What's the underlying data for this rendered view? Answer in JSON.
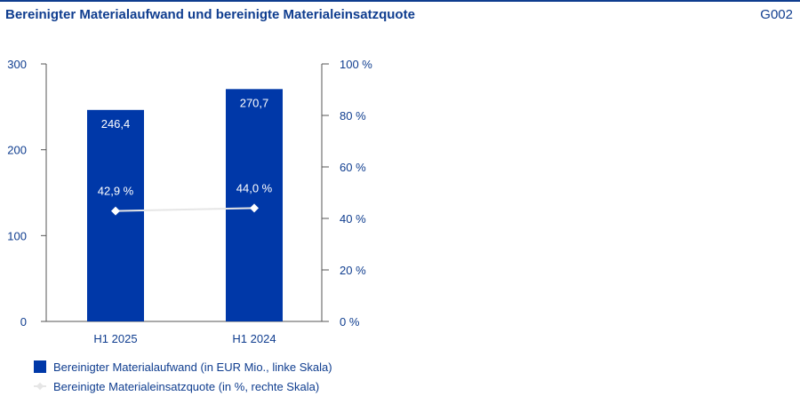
{
  "header": {
    "title": "Bereinigter Materialaufwand und bereinigte Materialeinsatzquote",
    "figure_id": "G002"
  },
  "colors": {
    "bar": "#0038a8",
    "line": "#e6e6e6",
    "text": "#0f3d8f",
    "axis": "#555555"
  },
  "chart_data": {
    "type": "bar",
    "categories": [
      "H1 2025",
      "H1 2024"
    ],
    "series": [
      {
        "name": "Bereinigter Materialaufwand (in EUR Mio., linke Skala)",
        "type": "bar",
        "axis": "left",
        "values": [
          246.4,
          270.7
        ],
        "labels": [
          "246,4",
          "270,7"
        ]
      },
      {
        "name": "Bereinigte Materialeinsatzquote (in %, rechte Skala)",
        "type": "line",
        "axis": "right",
        "values": [
          42.9,
          44.0
        ],
        "labels": [
          "42,9 %",
          "44,0 %"
        ]
      }
    ],
    "left_axis": {
      "range": [
        0,
        300
      ],
      "ticks": [
        "0",
        "100",
        "200",
        "300"
      ],
      "tick_values": [
        0,
        100,
        200,
        300
      ]
    },
    "right_axis": {
      "range": [
        0,
        100
      ],
      "ticks": [
        "0 %",
        "20 %",
        "40 %",
        "60 %",
        "80 %",
        "100 %"
      ],
      "tick_values": [
        0,
        20,
        40,
        60,
        80,
        100
      ]
    },
    "grid": false,
    "legend": "bottom-left"
  }
}
